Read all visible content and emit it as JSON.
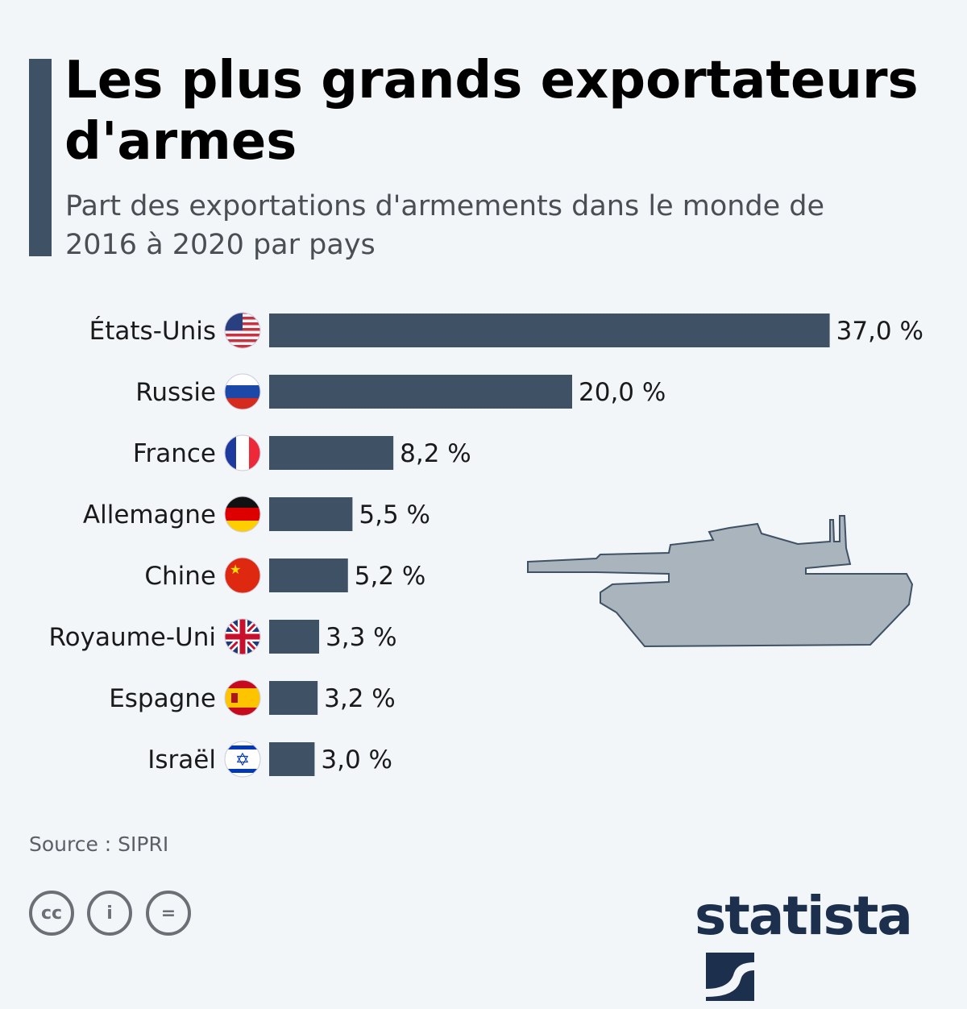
{
  "title": "Les plus grands exportateurs d'armes",
  "subtitle": "Part des exportations d'armements dans le monde de 2016 à 2020 par pays",
  "source": "Source : SIPRI",
  "brand": "statista",
  "colors": {
    "bar": "#3f5165",
    "background": "#f3f6f9",
    "tank": "#aab4bd"
  },
  "chart_data": {
    "type": "bar",
    "orientation": "horizontal",
    "categories": [
      "États-Unis",
      "Russie",
      "France",
      "Allemagne",
      "Chine",
      "Royaume-Uni",
      "Espagne",
      "Israël"
    ],
    "values": [
      37.0,
      20.0,
      8.2,
      5.5,
      5.2,
      3.3,
      3.2,
      3.0
    ],
    "value_labels": [
      "37,0 %",
      "20,0 %",
      "8,2 %",
      "5,5 %",
      "5,2 %",
      "3,3 %",
      "3,2 %",
      "3,0 %"
    ],
    "flags": [
      "us",
      "ru",
      "fr",
      "de",
      "cn",
      "gb",
      "es",
      "il"
    ],
    "unit": "%"
  }
}
